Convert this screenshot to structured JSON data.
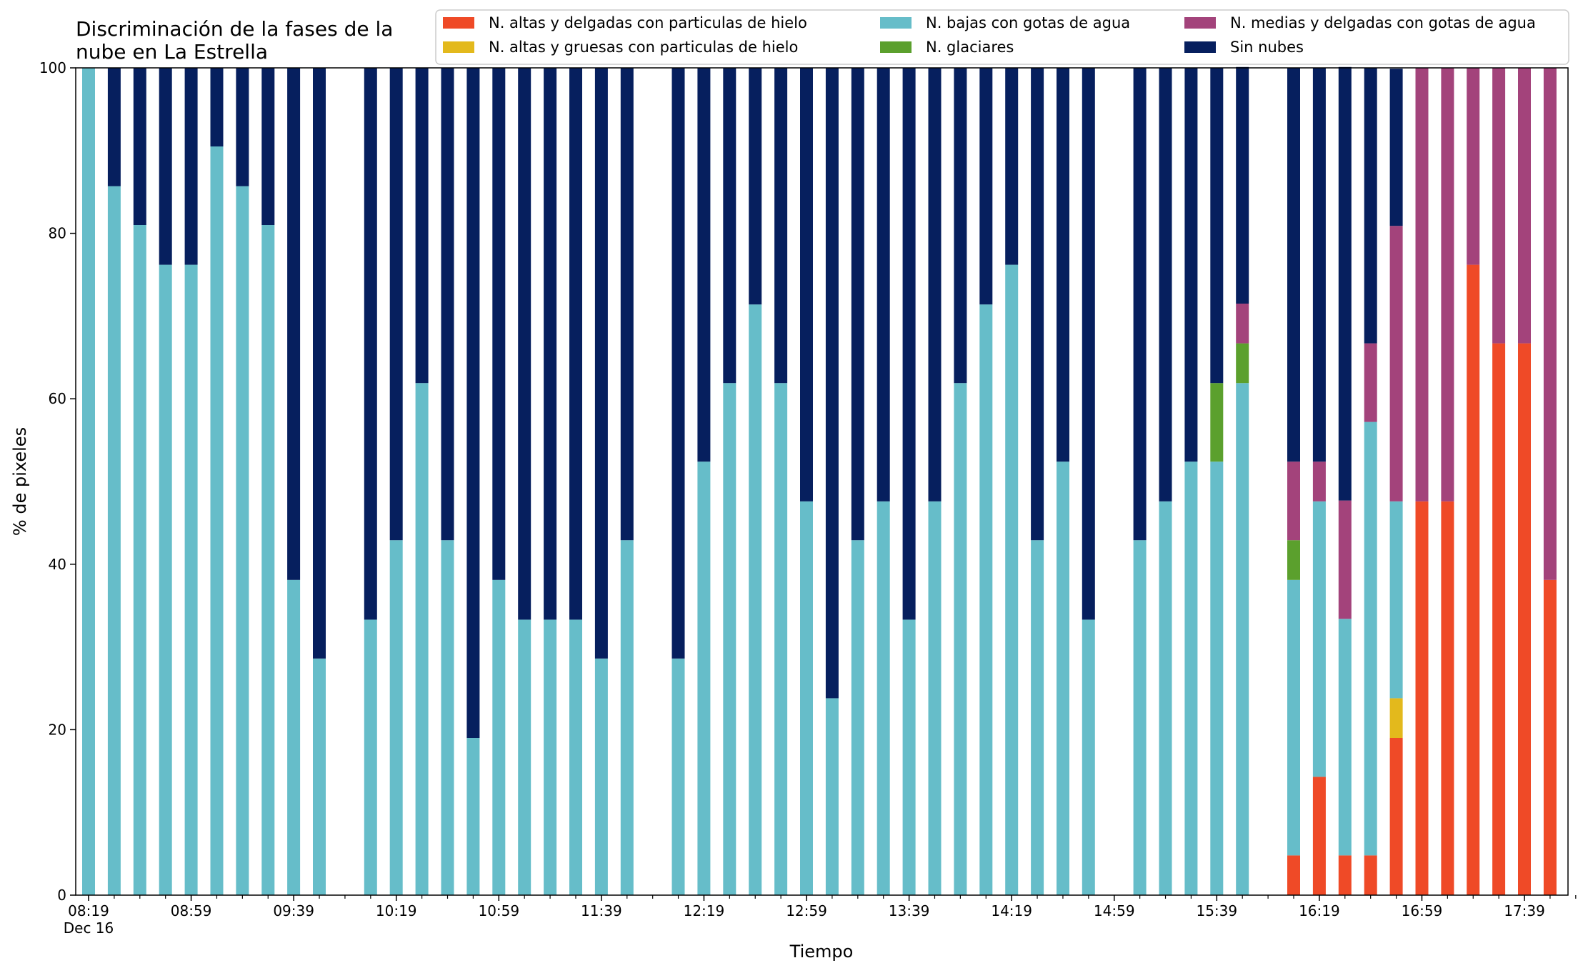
{
  "chart_data": {
    "type": "bar",
    "stacked": true,
    "title": "Discriminación de la fases de la\nnube en La Estrella",
    "xlabel": "Tiempo",
    "ylabel": "% de pixeles",
    "ylim": [
      0,
      100
    ],
    "yticks": [
      0,
      20,
      40,
      60,
      80,
      100
    ],
    "grid": false,
    "legend_position": "top-right",
    "legend_columns": 3,
    "x_time_range": [
      "08:19",
      "17:59"
    ],
    "x_step_minutes": 10,
    "xtick_labels": [
      {
        "t": "08:19",
        "label": "08:19",
        "sub": "Dec 16"
      },
      {
        "t": "08:59",
        "label": "08:59"
      },
      {
        "t": "09:39",
        "label": "09:39"
      },
      {
        "t": "10:19",
        "label": "10:19"
      },
      {
        "t": "10:59",
        "label": "10:59"
      },
      {
        "t": "11:39",
        "label": "11:39"
      },
      {
        "t": "12:19",
        "label": "12:19"
      },
      {
        "t": "12:59",
        "label": "12:59"
      },
      {
        "t": "13:39",
        "label": "13:39"
      },
      {
        "t": "14:19",
        "label": "14:19"
      },
      {
        "t": "14:59",
        "label": "14:59"
      },
      {
        "t": "15:39",
        "label": "15:39"
      },
      {
        "t": "16:19",
        "label": "16:19"
      },
      {
        "t": "16:59",
        "label": "16:59"
      },
      {
        "t": "17:39",
        "label": "17:39"
      }
    ],
    "categories": [
      "08:19",
      "08:29",
      "08:39",
      "08:49",
      "08:59",
      "09:09",
      "09:19",
      "09:29",
      "09:39",
      "09:49",
      "10:09",
      "10:19",
      "10:29",
      "10:39",
      "10:49",
      "10:59",
      "11:09",
      "11:19",
      "11:29",
      "11:39",
      "11:49",
      "12:09",
      "12:19",
      "12:29",
      "12:39",
      "12:49",
      "12:59",
      "13:09",
      "13:19",
      "13:29",
      "13:39",
      "13:49",
      "13:59",
      "14:09",
      "14:19",
      "14:29",
      "14:39",
      "14:49",
      "15:09",
      "15:19",
      "15:29",
      "15:39",
      "15:49",
      "15:59",
      "16:09",
      "16:19",
      "16:29",
      "16:39",
      "16:49",
      "16:59",
      "17:09",
      "17:19",
      "17:29",
      "17:39",
      "17:49"
    ],
    "series": [
      {
        "name": "N. altas y delgadas con particulas de hielo",
        "color": "#EF4A27",
        "values": [
          0,
          0,
          0,
          0,
          0,
          0,
          0,
          0,
          0,
          0,
          0,
          0,
          0,
          0,
          0,
          0,
          0,
          0,
          0,
          0,
          0,
          0,
          0,
          0,
          0,
          0,
          0,
          0,
          0,
          0,
          0,
          0,
          0,
          0,
          0,
          0,
          0,
          0,
          0,
          0,
          0,
          0,
          0,
          0,
          4.8,
          14.3,
          4.8,
          4.8,
          19.0,
          47.6,
          47.6,
          76.2,
          66.7,
          66.7,
          38.1
        ]
      },
      {
        "name": "N. altas y gruesas con particulas de hielo",
        "color": "#E3B91C",
        "values": [
          0,
          0,
          0,
          0,
          0,
          0,
          0,
          0,
          0,
          0,
          0,
          0,
          0,
          0,
          0,
          0,
          0,
          0,
          0,
          0,
          0,
          0,
          0,
          0,
          0,
          0,
          0,
          0,
          0,
          0,
          0,
          0,
          0,
          0,
          0,
          0,
          0,
          0,
          0,
          0,
          0,
          0,
          0,
          0,
          0,
          0,
          0,
          0,
          4.8,
          0,
          0,
          0,
          0,
          0,
          0
        ]
      },
      {
        "name": "N. bajas con gotas de agua",
        "color": "#66BDC9",
        "values": [
          100,
          85.7,
          81.0,
          76.2,
          76.2,
          90.5,
          85.7,
          81.0,
          38.1,
          28.6,
          33.3,
          42.9,
          61.9,
          42.9,
          19.0,
          38.1,
          33.3,
          33.3,
          33.3,
          28.6,
          42.9,
          28.6,
          52.4,
          61.9,
          71.4,
          61.9,
          47.6,
          23.8,
          42.9,
          47.6,
          33.3,
          47.6,
          61.9,
          71.4,
          76.2,
          42.9,
          52.4,
          33.3,
          42.9,
          47.6,
          52.4,
          52.4,
          61.9,
          0,
          33.3,
          33.3,
          28.6,
          52.4,
          23.8,
          0,
          0,
          0,
          0,
          0,
          0
        ]
      },
      {
        "name": "N. glaciares",
        "color": "#5BA02D",
        "values": [
          0,
          0,
          0,
          0,
          0,
          0,
          0,
          0,
          0,
          0,
          0,
          0,
          0,
          0,
          0,
          0,
          0,
          0,
          0,
          0,
          0,
          0,
          0,
          0,
          0,
          0,
          0,
          0,
          0,
          0,
          0,
          0,
          0,
          0,
          0,
          0,
          0,
          0,
          0,
          0,
          0,
          9.5,
          4.8,
          0,
          4.8,
          0,
          0,
          0,
          0,
          0,
          0,
          0,
          0,
          0,
          0
        ]
      },
      {
        "name": "N. medias y delgadas con gotas de agua",
        "color": "#A3437B",
        "values": [
          0,
          0,
          0,
          0,
          0,
          0,
          0,
          0,
          0,
          0,
          0,
          0,
          0,
          0,
          0,
          0,
          0,
          0,
          0,
          0,
          0,
          0,
          0,
          0,
          0,
          0,
          0,
          0,
          0,
          0,
          0,
          0,
          0,
          0,
          0,
          0,
          0,
          0,
          0,
          0,
          0,
          0,
          4.8,
          0,
          9.5,
          4.8,
          14.3,
          9.5,
          33.3,
          52.4,
          52.4,
          23.8,
          33.3,
          33.3,
          61.9
        ]
      },
      {
        "name": "Sin nubes",
        "color": "#061F5E",
        "values": [
          0,
          14.3,
          19.0,
          23.8,
          23.8,
          9.5,
          14.3,
          19.0,
          61.9,
          71.4,
          66.7,
          57.1,
          38.1,
          57.1,
          81.0,
          61.9,
          66.7,
          66.7,
          66.7,
          71.4,
          57.1,
          71.4,
          47.6,
          38.1,
          28.6,
          38.1,
          52.4,
          76.2,
          57.1,
          52.4,
          66.7,
          52.4,
          38.1,
          28.6,
          23.8,
          57.1,
          47.6,
          66.7,
          57.1,
          52.4,
          47.6,
          38.1,
          28.6,
          0,
          47.6,
          47.6,
          52.4,
          33.3,
          19.0,
          0,
          0,
          0,
          0,
          0,
          0
        ]
      }
    ]
  }
}
